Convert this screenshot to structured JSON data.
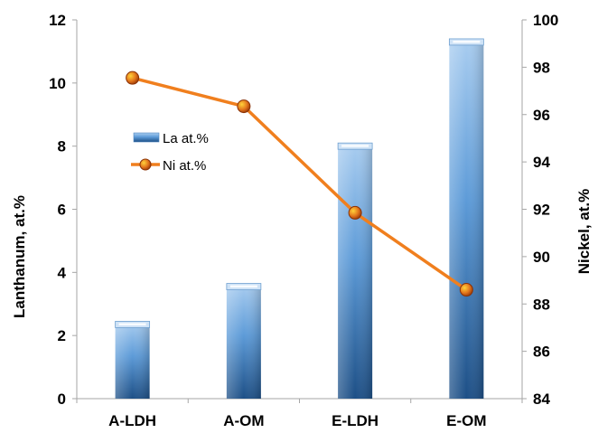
{
  "chart_data": {
    "type": "bar",
    "categories": [
      "A-LDH",
      "A-OM",
      "E-LDH",
      "E-OM"
    ],
    "series": [
      {
        "name": "La at.%",
        "type": "bar",
        "axis": "left",
        "values": [
          2.45,
          3.65,
          8.1,
          11.4
        ],
        "color": "#2e6da8"
      },
      {
        "name": "Ni at.%",
        "type": "line",
        "axis": "right",
        "values": [
          97.55,
          96.35,
          91.85,
          88.6
        ],
        "color": "#f07f1e",
        "marker_color": "#c0480a"
      }
    ],
    "ylabel": "Lanthanum, at.%",
    "y2label": "Nickel,  at.%",
    "ylim": [
      0,
      12
    ],
    "y2lim": [
      84,
      100
    ],
    "yticks": [
      "0",
      "2",
      "4",
      "6",
      "8",
      "10",
      "12"
    ],
    "y2ticks": [
      "84",
      "86",
      "88",
      "90",
      "92",
      "94",
      "96",
      "98",
      "100"
    ],
    "grid": false,
    "legend_position": "upper-left"
  }
}
